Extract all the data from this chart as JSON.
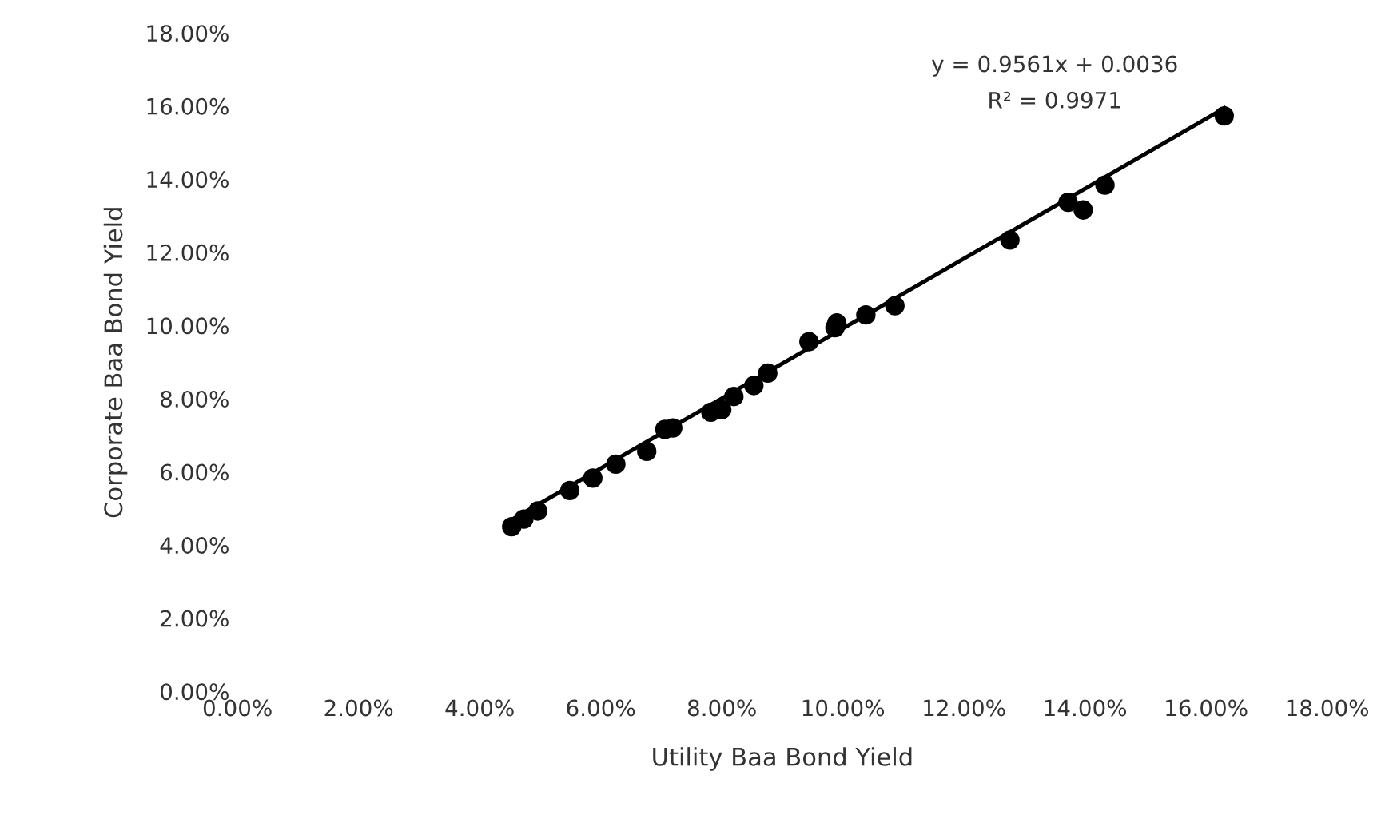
{
  "chart_data": {
    "type": "scatter",
    "xlabel": "Utility Baa Bond Yield",
    "ylabel": "Corporate Baa Bond Yield",
    "annotations": [
      "y = 0.9561x + 0.0036",
      "R² = 0.9971"
    ],
    "series": [
      {
        "color": "#000000",
        "marker": "circle",
        "x": [
          0.0453,
          0.0473,
          0.0496,
          0.0549,
          0.0587,
          0.0625,
          0.0676,
          0.0706,
          0.0719,
          0.0782,
          0.08,
          0.082,
          0.0853,
          0.0876,
          0.0944,
          0.099,
          0.0987,
          0.1038,
          0.1086,
          0.1276,
          0.1372,
          0.1397,
          0.1433,
          0.163
        ],
        "values": [
          0.045,
          0.0471,
          0.0493,
          0.0549,
          0.0583,
          0.0621,
          0.0656,
          0.0716,
          0.072,
          0.0763,
          0.077,
          0.0806,
          0.0836,
          0.087,
          0.0956,
          0.1007,
          0.0994,
          0.1029,
          0.1054,
          0.1234,
          0.1337,
          0.1316,
          0.1384,
          0.1573
        ]
      },
      {
        "type": "line",
        "color": "#000000",
        "marker": "none",
        "x": [
          0.0453,
          0.163
        ],
        "values": [
          0.0469,
          0.1594
        ]
      }
    ],
    "xlim": [
      0,
      0.18
    ],
    "ylim": [
      0,
      0.18
    ],
    "xticks": [
      {
        "value": 0,
        "label": "0.00%"
      },
      {
        "value": 0.02,
        "label": "2.00%"
      },
      {
        "value": 0.04,
        "label": "4.00%"
      },
      {
        "value": 0.06,
        "label": "6.00%"
      },
      {
        "value": 0.08,
        "label": "8.00%"
      },
      {
        "value": 0.1,
        "label": "10.00%"
      },
      {
        "value": 0.12,
        "label": "12.00%"
      },
      {
        "value": 0.14,
        "label": "14.00%"
      },
      {
        "value": 0.16,
        "label": "16.00%"
      },
      {
        "value": 0.18,
        "label": "18.00%"
      }
    ],
    "yticks": [
      {
        "value": 0,
        "label": "0.00%"
      },
      {
        "value": 0.02,
        "label": "2.00%"
      },
      {
        "value": 0.04,
        "label": "4.00%"
      },
      {
        "value": 0.06,
        "label": "6.00%"
      },
      {
        "value": 0.08,
        "label": "8.00%"
      },
      {
        "value": 0.1,
        "label": "10.00%"
      },
      {
        "value": 0.12,
        "label": "12.00%"
      },
      {
        "value": 0.14,
        "label": "14.00%"
      },
      {
        "value": 0.16,
        "label": "16.00%"
      },
      {
        "value": 0.18,
        "label": "18.00%"
      }
    ],
    "grid": false,
    "legend": false
  }
}
